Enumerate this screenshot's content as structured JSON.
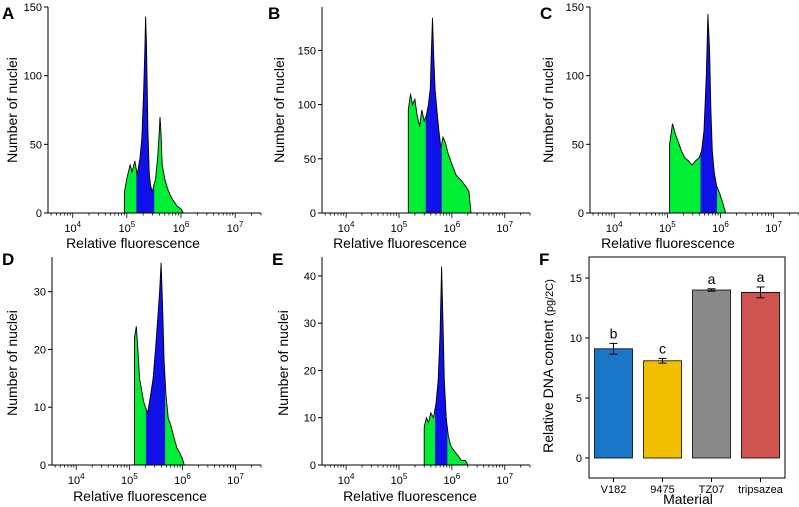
{
  "figure": {
    "panel_labels": [
      "A",
      "B",
      "C",
      "D",
      "E",
      "F"
    ]
  },
  "chart_data": [
    {
      "panel": "A",
      "type": "area",
      "xlabel": "Relative fluorescence",
      "ylabel": "Number of nuclei",
      "x_scale": "log",
      "xlim": [
        3500,
        30000000
      ],
      "ylim": [
        0,
        150
      ],
      "xticks": [
        {
          "v": 10000,
          "b": "10",
          "e": "4"
        },
        {
          "v": 100000,
          "b": "10",
          "e": "5"
        },
        {
          "v": 1000000,
          "b": "10",
          "e": "6"
        },
        {
          "v": 10000000,
          "b": "10",
          "e": "7"
        }
      ],
      "yticks": [
        0,
        50,
        100,
        150
      ],
      "gate": [
        150000,
        320000
      ],
      "points": [
        [
          90000,
          0
        ],
        [
          90000,
          15
        ],
        [
          100000,
          25
        ],
        [
          115000,
          35
        ],
        [
          125000,
          30
        ],
        [
          140000,
          38
        ],
        [
          155000,
          28
        ],
        [
          175000,
          40
        ],
        [
          190000,
          55
        ],
        [
          205000,
          90
        ],
        [
          215000,
          120
        ],
        [
          222000,
          143
        ],
        [
          230000,
          125
        ],
        [
          245000,
          60
        ],
        [
          260000,
          28
        ],
        [
          275000,
          20
        ],
        [
          295000,
          15
        ],
        [
          315000,
          20
        ],
        [
          340000,
          25
        ],
        [
          370000,
          40
        ],
        [
          395000,
          58
        ],
        [
          410000,
          70
        ],
        [
          425000,
          60
        ],
        [
          450000,
          35
        ],
        [
          500000,
          25
        ],
        [
          560000,
          18
        ],
        [
          650000,
          12
        ],
        [
          750000,
          8
        ],
        [
          850000,
          5
        ],
        [
          1000000,
          3
        ],
        [
          1100000,
          0
        ]
      ]
    },
    {
      "panel": "B",
      "type": "area",
      "xlabel": "Relative fluorescence",
      "ylabel": "Number of nuclei",
      "x_scale": "log",
      "xlim": [
        3500,
        30000000
      ],
      "ylim": [
        0,
        190
      ],
      "xticks": [
        {
          "v": 10000,
          "b": "10",
          "e": "4"
        },
        {
          "v": 100000,
          "b": "10",
          "e": "5"
        },
        {
          "v": 1000000,
          "b": "10",
          "e": "6"
        },
        {
          "v": 10000000,
          "b": "10",
          "e": "7"
        }
      ],
      "yticks": [
        0,
        50,
        100,
        150
      ],
      "gate": [
        320000,
        640000
      ],
      "points": [
        [
          150000,
          0
        ],
        [
          150000,
          95
        ],
        [
          165000,
          110
        ],
        [
          180000,
          100
        ],
        [
          200000,
          105
        ],
        [
          220000,
          90
        ],
        [
          245000,
          80
        ],
        [
          270000,
          95
        ],
        [
          300000,
          85
        ],
        [
          330000,
          90
        ],
        [
          360000,
          100
        ],
        [
          390000,
          115
        ],
        [
          410000,
          150
        ],
        [
          430000,
          180
        ],
        [
          450000,
          150
        ],
        [
          480000,
          115
        ],
        [
          520000,
          95
        ],
        [
          570000,
          75
        ],
        [
          620000,
          60
        ],
        [
          680000,
          70
        ],
        [
          750000,
          65
        ],
        [
          850000,
          55
        ],
        [
          1000000,
          45
        ],
        [
          1200000,
          35
        ],
        [
          1500000,
          30
        ],
        [
          1800000,
          25
        ],
        [
          2100000,
          20
        ],
        [
          2300000,
          0
        ]
      ]
    },
    {
      "panel": "C",
      "type": "area",
      "xlabel": "Relative fluorescence",
      "ylabel": "Number of nuclei",
      "x_scale": "log",
      "xlim": [
        3500,
        30000000
      ],
      "ylim": [
        0,
        150
      ],
      "xticks": [
        {
          "v": 10000,
          "b": "10",
          "e": "4"
        },
        {
          "v": 100000,
          "b": "10",
          "e": "5"
        },
        {
          "v": 1000000,
          "b": "10",
          "e": "6"
        },
        {
          "v": 10000000,
          "b": "10",
          "e": "7"
        }
      ],
      "yticks": [
        0,
        50,
        100,
        150
      ],
      "gate": [
        420000,
        860000
      ],
      "points": [
        [
          110000,
          0
        ],
        [
          110000,
          50
        ],
        [
          125000,
          65
        ],
        [
          140000,
          58
        ],
        [
          160000,
          52
        ],
        [
          185000,
          45
        ],
        [
          215000,
          40
        ],
        [
          250000,
          38
        ],
        [
          290000,
          35
        ],
        [
          340000,
          38
        ],
        [
          390000,
          40
        ],
        [
          440000,
          45
        ],
        [
          490000,
          60
        ],
        [
          540000,
          100
        ],
        [
          580000,
          145
        ],
        [
          620000,
          120
        ],
        [
          660000,
          75
        ],
        [
          700000,
          45
        ],
        [
          760000,
          30
        ],
        [
          840000,
          20
        ],
        [
          950000,
          15
        ],
        [
          1050000,
          10
        ],
        [
          1150000,
          5
        ],
        [
          1250000,
          0
        ]
      ]
    },
    {
      "panel": "D",
      "type": "area",
      "xlabel": "Relative fluorescence",
      "ylabel": "Number of nuclei",
      "x_scale": "log",
      "xlim": [
        3500,
        30000000
      ],
      "ylim": [
        0,
        36
      ],
      "xticks": [
        {
          "v": 10000,
          "b": "10",
          "e": "4"
        },
        {
          "v": 100000,
          "b": "10",
          "e": "5"
        },
        {
          "v": 1000000,
          "b": "10",
          "e": "6"
        },
        {
          "v": 10000000,
          "b": "10",
          "e": "7"
        }
      ],
      "yticks": [
        0,
        10,
        20,
        30
      ],
      "gate": [
        205000,
        470000
      ],
      "points": [
        [
          125000,
          0
        ],
        [
          125000,
          22
        ],
        [
          135000,
          24
        ],
        [
          145000,
          20
        ],
        [
          155000,
          15
        ],
        [
          170000,
          13
        ],
        [
          185000,
          11
        ],
        [
          200000,
          10
        ],
        [
          220000,
          9
        ],
        [
          250000,
          12
        ],
        [
          280000,
          15
        ],
        [
          310000,
          20
        ],
        [
          340000,
          25
        ],
        [
          370000,
          30
        ],
        [
          395000,
          35
        ],
        [
          420000,
          28
        ],
        [
          450000,
          18
        ],
        [
          490000,
          12
        ],
        [
          540000,
          8
        ],
        [
          600000,
          7
        ],
        [
          680000,
          5
        ],
        [
          780000,
          3
        ],
        [
          900000,
          2
        ],
        [
          1000000,
          1
        ],
        [
          1080000,
          0
        ]
      ]
    },
    {
      "panel": "E",
      "type": "area",
      "xlabel": "Relative fluorescence",
      "ylabel": "Number of nuclei",
      "x_scale": "log",
      "xlim": [
        3500,
        30000000
      ],
      "ylim": [
        0,
        44
      ],
      "xticks": [
        {
          "v": 10000,
          "b": "10",
          "e": "4"
        },
        {
          "v": 100000,
          "b": "10",
          "e": "5"
        },
        {
          "v": 1000000,
          "b": "10",
          "e": "6"
        },
        {
          "v": 10000000,
          "b": "10",
          "e": "7"
        }
      ],
      "yticks": [
        0,
        10,
        20,
        30,
        40
      ],
      "gate": [
        480000,
        820000
      ],
      "points": [
        [
          300000,
          0
        ],
        [
          300000,
          8
        ],
        [
          330000,
          10
        ],
        [
          360000,
          9
        ],
        [
          400000,
          11
        ],
        [
          450000,
          10
        ],
        [
          500000,
          13
        ],
        [
          550000,
          18
        ],
        [
          600000,
          28
        ],
        [
          640000,
          42
        ],
        [
          680000,
          30
        ],
        [
          720000,
          18
        ],
        [
          780000,
          10
        ],
        [
          860000,
          6
        ],
        [
          960000,
          4
        ],
        [
          1100000,
          3
        ],
        [
          1300000,
          2
        ],
        [
          1500000,
          1
        ],
        [
          1800000,
          1
        ],
        [
          2000000,
          0
        ]
      ]
    },
    {
      "panel": "F",
      "type": "bar",
      "xlabel": "Material",
      "ylabel": "Relative DNA content",
      "ylabel_unit": "(pg/2C)",
      "ylim": [
        0,
        16
      ],
      "yticks": [
        0,
        5,
        10,
        15
      ],
      "categories": [
        "V182",
        "9475",
        "TZ07",
        "tripsazea"
      ],
      "values": [
        9.1,
        8.1,
        14.0,
        13.8
      ],
      "errors": [
        0.45,
        0.2,
        0.1,
        0.45
      ],
      "significance": [
        "b",
        "c",
        "a",
        "a"
      ],
      "colors": [
        "#1a76c8",
        "#f2bf00",
        "#8a8a8a",
        "#cf5450"
      ]
    }
  ],
  "colors": {
    "green": "#00ee33",
    "blue": "#1010e8",
    "outline": "#000000"
  }
}
